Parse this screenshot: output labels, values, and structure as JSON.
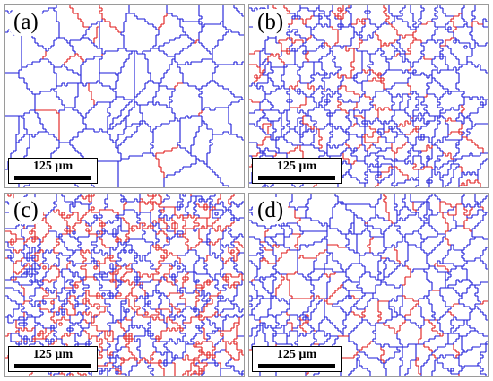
{
  "colors": {
    "high_angle_boundary": "#1a1ad8",
    "low_angle_boundary": "#e01a1a",
    "grain_fill": "#ffffff",
    "panel_border": "#9a9a9a"
  },
  "panels": [
    {
      "label": "(a)",
      "scale_text": "125 µm"
    },
    {
      "label": "(b)",
      "scale_text": "125 µm"
    },
    {
      "label": "(c)",
      "scale_text": "125 µm"
    },
    {
      "label": "(d)",
      "scale_text": "125 µm"
    }
  ]
}
